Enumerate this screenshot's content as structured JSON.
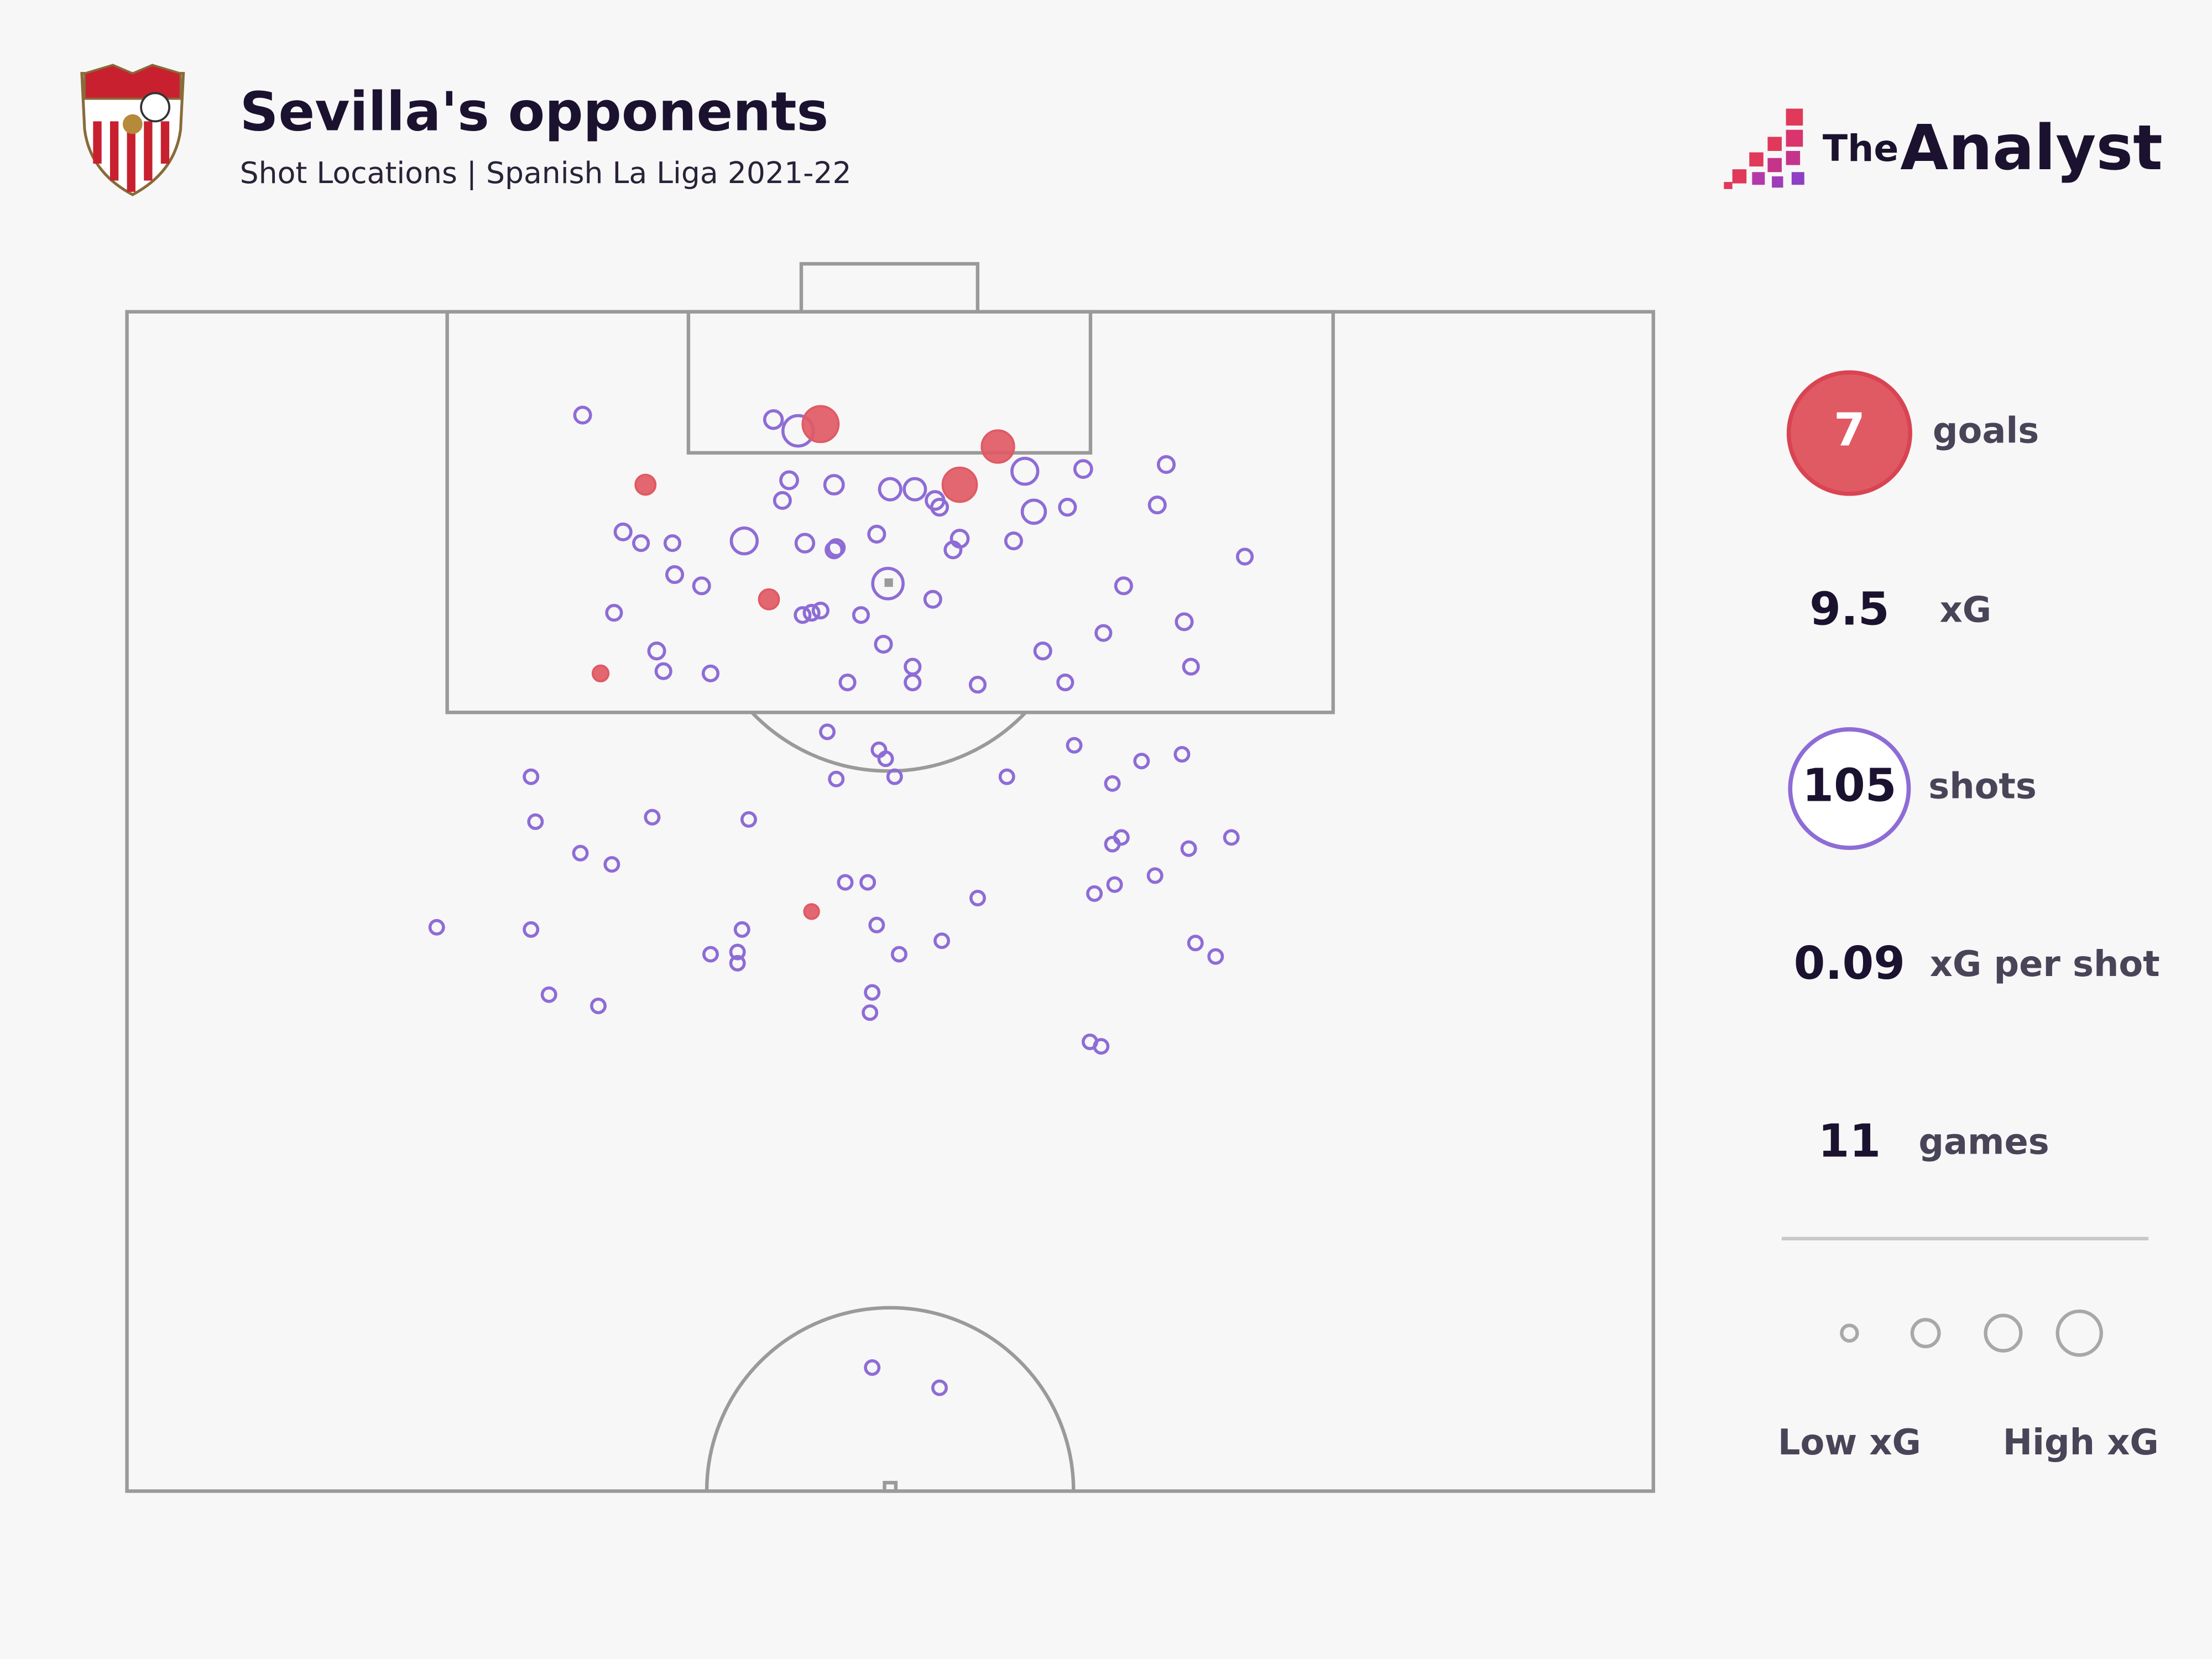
{
  "chart_data": {
    "type": "scatter",
    "title": "Sevilla's opponents",
    "subtitle": "Shot Locations | Spanish La Liga 2021-22",
    "xlim": [
      0,
      68
    ],
    "ylim": [
      0,
      52.5
    ],
    "series": [
      {
        "color": "#8e6cd6",
        "x": [
          20.3,
          28.8,
          29.9,
          40.0,
          42.6,
          46.3,
          29.5,
          31.5,
          34.0,
          35.1,
          36.0,
          36.2,
          29.2,
          40.4,
          41.9,
          45.9,
          22.1,
          22.9,
          24.3,
          27.5,
          30.2,
          31.5,
          31.6,
          33.4,
          37.1,
          36.8,
          39.5,
          49.8,
          24.4,
          25.6,
          33.9,
          44.4,
          21.7,
          30.1,
          30.5,
          30.9,
          32.7,
          35.9,
          47.1,
          43.5,
          23.6,
          33.7,
          40.8,
          47.4,
          23.9,
          26.0,
          35.0,
          32.1,
          35.0,
          37.9,
          41.8,
          31.2,
          33.5,
          33.8,
          42.2,
          45.2,
          47.0,
          18.0,
          31.6,
          34.2,
          39.2,
          43.9,
          18.2,
          23.4,
          27.7,
          43.9,
          44.3,
          49.2,
          47.3,
          20.2,
          21.6,
          32.0,
          33.0,
          45.8,
          43.1,
          44.0,
          37.9,
          13.8,
          18.0,
          27.4,
          33.4,
          36.3,
          47.6,
          26.0,
          27.2,
          27.2,
          34.4,
          48.5,
          18.8,
          21.0,
          33.2,
          33.1,
          42.9,
          43.4,
          33.2,
          36.2
        ],
        "values": [
          4.6,
          4.8,
          5.3,
          7.1,
          7.0,
          6.8,
          7.5,
          7.7,
          7.9,
          7.9,
          8.4,
          8.7,
          8.4,
          8.9,
          8.7,
          8.6,
          9.8,
          10.3,
          10.3,
          10.2,
          10.3,
          10.6,
          10.5,
          9.9,
          10.1,
          10.6,
          10.2,
          10.9,
          11.7,
          12.2,
          12.1,
          12.2,
          13.4,
          13.5,
          13.4,
          13.3,
          13.5,
          12.8,
          13.8,
          14.3,
          15.1,
          14.8,
          15.1,
          15.8,
          16.0,
          16.1,
          15.8,
          16.5,
          16.5,
          16.6,
          16.5,
          18.7,
          19.5,
          19.9,
          19.3,
          20.0,
          19.7,
          20.7,
          20.8,
          20.7,
          20.7,
          21.0,
          22.7,
          22.5,
          22.6,
          23.7,
          23.4,
          23.4,
          23.9,
          24.1,
          24.6,
          25.4,
          25.4,
          25.1,
          25.9,
          25.5,
          26.1,
          27.4,
          27.5,
          27.5,
          27.3,
          28.0,
          28.1,
          28.6,
          28.5,
          29.0,
          28.6,
          28.7,
          30.4,
          30.9,
          30.3,
          31.2,
          32.5,
          32.7,
          47.0,
          47.9
        ],
        "xg": [
          0.05,
          0.07,
          0.3,
          0.2,
          0.06,
          0.05,
          0.06,
          0.08,
          0.12,
          0.12,
          0.07,
          0.05,
          0.05,
          0.15,
          0.05,
          0.05,
          0.05,
          0.04,
          0.04,
          0.2,
          0.07,
          0.05,
          0.05,
          0.05,
          0.06,
          0.05,
          0.05,
          0.04,
          0.05,
          0.05,
          0.3,
          0.05,
          0.04,
          0.04,
          0.04,
          0.04,
          0.04,
          0.05,
          0.05,
          0.04,
          0.05,
          0.05,
          0.05,
          0.04,
          0.04,
          0.04,
          0.04,
          0.04,
          0.04,
          0.04,
          0.04,
          0.03,
          0.03,
          0.03,
          0.03,
          0.03,
          0.03,
          0.03,
          0.03,
          0.03,
          0.03,
          0.03,
          0.03,
          0.03,
          0.03,
          0.03,
          0.03,
          0.03,
          0.03,
          0.03,
          0.03,
          0.03,
          0.03,
          0.03,
          0.03,
          0.03,
          0.03,
          0.03,
          0.03,
          0.03,
          0.03,
          0.03,
          0.03,
          0.03,
          0.03,
          0.03,
          0.03,
          0.03,
          0.03,
          0.03,
          0.03,
          0.03,
          0.03,
          0.03,
          0.03,
          0.03
        ]
      },
      {
        "color": "#e05a64",
        "x": [
          30.9,
          38.8,
          37.1,
          23.1,
          28.6,
          21.1,
          30.5
        ],
        "values": [
          5.0,
          6.0,
          7.7,
          7.7,
          12.8,
          16.1,
          26.7
        ],
        "xg": [
          0.45,
          0.35,
          0.4,
          0.1,
          0.1,
          0.05,
          0.04
        ]
      }
    ]
  },
  "stats": [
    {
      "value": 7,
      "label": "goals"
    },
    {
      "value": 9.5,
      "label": "xG"
    },
    {
      "value": 105,
      "label": "shots"
    },
    {
      "value": 0.09,
      "label": "xG per shot"
    },
    {
      "value": 11,
      "label": "games"
    }
  ],
  "legend": {
    "low": "Low xG",
    "high": "High xG"
  },
  "brand": {
    "small": "The",
    "big": "Analyst"
  }
}
